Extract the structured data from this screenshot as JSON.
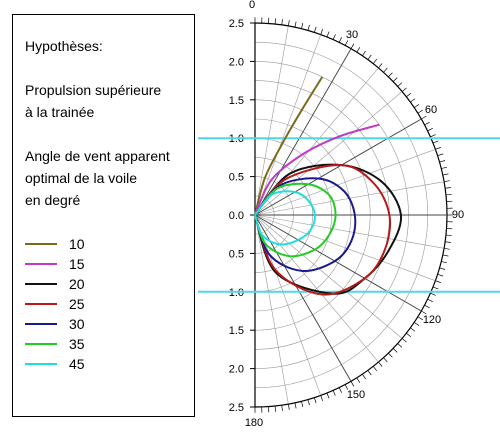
{
  "legend": {
    "heading": "Hypothèses:",
    "line1": "Propulsion supérieure",
    "line2": "à la trainée",
    "line3": "Angle de vent apparent",
    "line4": "optimal de la voile",
    "line5": "en degré"
  },
  "chart_data": {
    "type": "line",
    "subtype": "polar-half",
    "radial_ticks": [
      "2.5",
      "2.0",
      "1.5",
      "1.0",
      "0.5",
      "0.0",
      "0.5",
      "1.0",
      "1.5",
      "2.0",
      "2.5"
    ],
    "angle_ticks": [
      "0",
      "30",
      "60",
      "90",
      "120",
      "150",
      "180"
    ],
    "rmax": 2.5,
    "reference_lines_r": [
      1.0
    ],
    "reference_color": "#4fd8e8",
    "series": [
      {
        "name": "10",
        "color": "#7b6a1a",
        "points": [
          [
            0,
            0
          ],
          [
            15,
            0.5
          ],
          [
            21,
            1.0
          ],
          [
            24,
            1.5
          ],
          [
            26,
            2.0
          ]
        ]
      },
      {
        "name": "15",
        "color": "#c03ac8",
        "points": [
          [
            0,
            0
          ],
          [
            25,
            0.5
          ],
          [
            38,
            1.0
          ],
          [
            47,
            1.5
          ],
          [
            54,
            2.0
          ]
        ]
      },
      {
        "name": "20",
        "color": "#111111",
        "points": [
          [
            0,
            0
          ],
          [
            40,
            0.7
          ],
          [
            60,
            1.3
          ],
          [
            75,
            1.7
          ],
          [
            90,
            1.9
          ],
          [
            105,
            1.8
          ],
          [
            120,
            1.65
          ],
          [
            135,
            1.45
          ],
          [
            160,
            0.8
          ],
          [
            180,
            0
          ]
        ]
      },
      {
        "name": "25",
        "color": "#b81818",
        "points": [
          [
            0,
            0
          ],
          [
            40,
            0.6
          ],
          [
            60,
            1.3
          ],
          [
            75,
            1.6
          ],
          [
            90,
            1.75
          ],
          [
            105,
            1.75
          ],
          [
            120,
            1.65
          ],
          [
            140,
            1.35
          ],
          [
            160,
            0.75
          ],
          [
            180,
            0
          ]
        ]
      },
      {
        "name": "30",
        "color": "#1a1a8c",
        "points": [
          [
            0,
            0
          ],
          [
            40,
            0.5
          ],
          [
            60,
            0.95
          ],
          [
            75,
            1.2
          ],
          [
            90,
            1.3
          ],
          [
            105,
            1.3
          ],
          [
            120,
            1.2
          ],
          [
            140,
            0.95
          ],
          [
            160,
            0.55
          ],
          [
            180,
            0
          ]
        ]
      },
      {
        "name": "35",
        "color": "#22cc22",
        "points": [
          [
            0,
            0
          ],
          [
            40,
            0.45
          ],
          [
            60,
            0.8
          ],
          [
            75,
            1.0
          ],
          [
            90,
            1.05
          ],
          [
            105,
            1.0
          ],
          [
            120,
            0.9
          ],
          [
            140,
            0.7
          ],
          [
            160,
            0.4
          ],
          [
            180,
            0
          ]
        ]
      },
      {
        "name": "45",
        "color": "#22dde0",
        "points": [
          [
            0,
            0
          ],
          [
            40,
            0.35
          ],
          [
            60,
            0.6
          ],
          [
            75,
            0.72
          ],
          [
            90,
            0.78
          ],
          [
            105,
            0.75
          ],
          [
            120,
            0.65
          ],
          [
            140,
            0.5
          ],
          [
            160,
            0.28
          ],
          [
            180,
            0
          ]
        ]
      }
    ]
  }
}
